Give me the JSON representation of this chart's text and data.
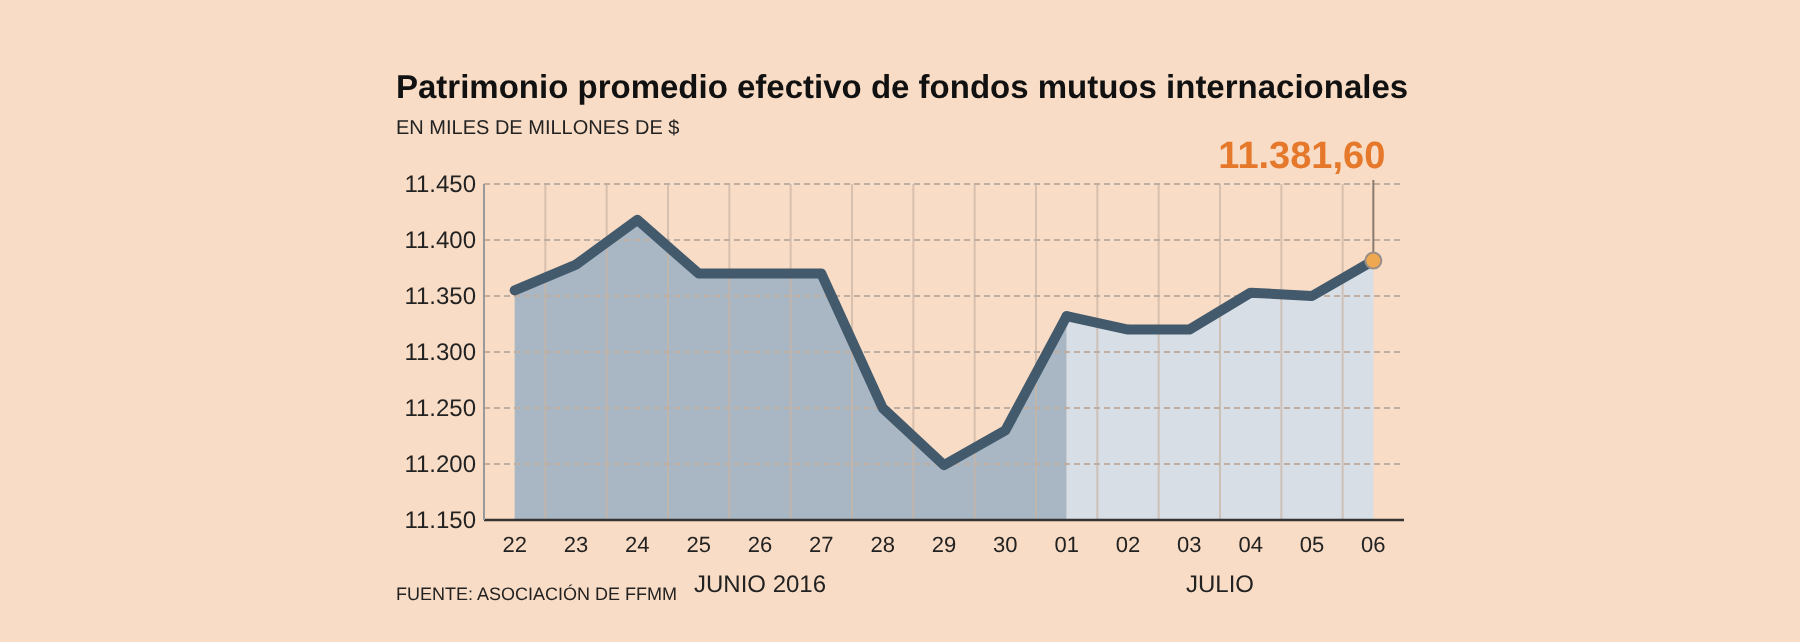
{
  "chart_data": {
    "type": "area",
    "title": "Patrimonio promedio efectivo de fondos mutuos internacionales",
    "subtitle": "EN MILES DE MILLONES DE $",
    "categories": [
      "22",
      "23",
      "24",
      "25",
      "26",
      "27",
      "28",
      "29",
      "30",
      "01",
      "02",
      "03",
      "04",
      "05",
      "06"
    ],
    "series": [
      {
        "color": "#a9b7c4",
        "values": [
          11355,
          11378,
          11418,
          11370,
          11370,
          11370,
          11250,
          11199,
          11230,
          11332,
          null,
          null,
          null,
          null,
          null
        ]
      },
      {
        "color": "#d8dee6",
        "values": [
          null,
          null,
          null,
          null,
          null,
          null,
          null,
          null,
          null,
          11332,
          11320,
          11320,
          11353,
          11350,
          11381.6
        ]
      }
    ],
    "ylim": [
      11150,
      11450
    ],
    "yticks": [
      {
        "value": 11150,
        "label": "11.150"
      },
      {
        "value": 11200,
        "label": "11.200"
      },
      {
        "value": 11250,
        "label": "11.250"
      },
      {
        "value": 11300,
        "label": "11.300"
      },
      {
        "value": 11350,
        "label": "11.350"
      },
      {
        "value": 11400,
        "label": "11.400"
      },
      {
        "value": 11450,
        "label": "11.450"
      }
    ],
    "grid": true,
    "marker": "none",
    "annotations": [
      {
        "text": "11.381,60",
        "x": "06",
        "y": 11381.6
      },
      "JUNIO 2016",
      "JULIO",
      "FUENTE: ASOCIACIÓN DE FFMM"
    ]
  }
}
